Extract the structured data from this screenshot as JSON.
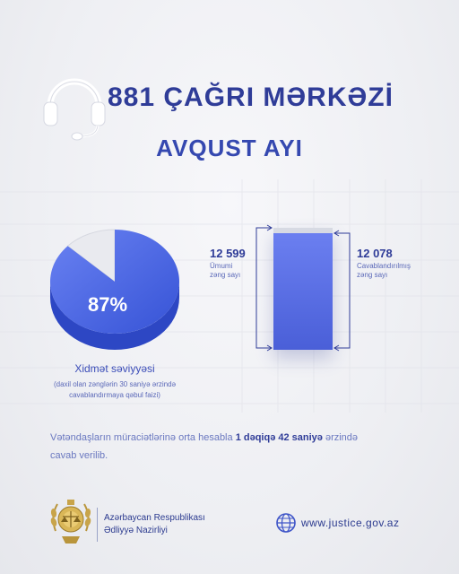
{
  "header": {
    "title": "881 ÇAĞRI MƏRKƏZİ",
    "subtitle": "AVQUST AYI"
  },
  "service_level": {
    "percent_label": "87%",
    "percent_value": 87,
    "title": "Xidmət səviyyəsi",
    "note_line1": "(daxil olan zənglərin 30 saniyə ərzində",
    "note_line2": "cavablandırmaya qəbul faizi)"
  },
  "calls": {
    "total_value": "12 599",
    "total_label_line1": "Ümumi",
    "total_label_line2": "zəng sayı",
    "answered_value": "12 078",
    "answered_label_line1": "Cavablandırılmış",
    "answered_label_line2": "zəng sayı"
  },
  "summary": {
    "prefix": "Vətəndaşların müraciətlərinə orta hesabla ",
    "highlight": "1 dəqiqə 42 saniyə",
    "suffix": "  ərzində",
    "line2": "cavab verilib."
  },
  "footer": {
    "ministry_line1": "Azərbaycan Respublikası",
    "ministry_line2": "Ədliyyə Nazirliyi",
    "website": "www.justice.gov.az",
    "website_icon": "globe-icon",
    "logo": "emblem-icon"
  },
  "colors": {
    "primary": "#2f3c98",
    "accent": "#4f66e0",
    "background": "#eeeff3"
  }
}
